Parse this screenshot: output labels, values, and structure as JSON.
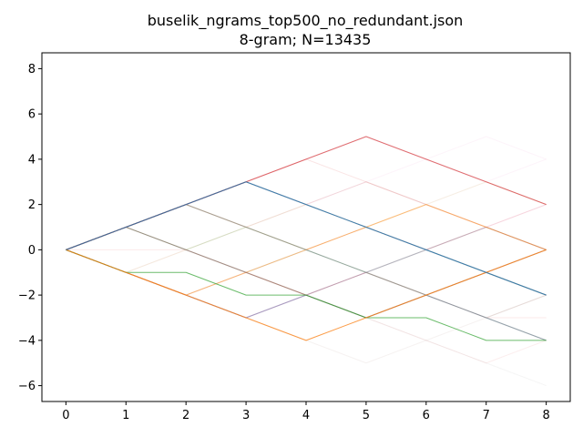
{
  "chart_data": {
    "type": "line",
    "title": "buselik_ngrams_top500_no_redundant.json",
    "subtitle": "8-gram; N=13435",
    "xlabel": "",
    "ylabel": "",
    "xlim": [
      -0.4,
      8.4
    ],
    "ylim": [
      -6.7,
      8.7
    ],
    "x_ticks": [
      0,
      1,
      2,
      3,
      4,
      5,
      6,
      7,
      8
    ],
    "y_ticks": [
      -6,
      -4,
      -2,
      0,
      2,
      4,
      6,
      8
    ],
    "grid": false,
    "legend": "none",
    "x": [
      0,
      1,
      2,
      3,
      4,
      5,
      6,
      7,
      8
    ],
    "series": [
      {
        "values": [
          0,
          1,
          2,
          3,
          4,
          5,
          4,
          3,
          2
        ],
        "color": "#d62728",
        "opacity": 0.65
      },
      {
        "values": [
          0,
          1,
          2,
          3,
          2,
          1,
          0,
          -1,
          -2
        ],
        "color": "#1f77b4",
        "opacity": 0.8
      },
      {
        "values": [
          0,
          1,
          2,
          3,
          2,
          1,
          0,
          -1,
          -2
        ],
        "color": "#7f7f7f",
        "opacity": 0.5
      },
      {
        "values": [
          0,
          -1,
          -2,
          -3,
          -4,
          -3,
          -2,
          -1,
          0
        ],
        "color": "#ff7f0e",
        "opacity": 0.75
      },
      {
        "values": [
          0,
          -1,
          -1,
          -2,
          -2,
          -3,
          -3,
          -4,
          -4
        ],
        "color": "#2ca02c",
        "opacity": 0.7
      },
      {
        "values": [
          0,
          1,
          0,
          -1,
          -2,
          -3,
          -2,
          -1,
          0
        ],
        "color": "#8c564b",
        "opacity": 0.6
      },
      {
        "values": [
          0,
          1,
          2,
          1,
          0,
          -1,
          -2,
          -3,
          -4
        ],
        "color": "#7f7f7f",
        "opacity": 0.6
      },
      {
        "values": [
          0,
          -1,
          -2,
          -1,
          0,
          1,
          2,
          1,
          0
        ],
        "color": "#ff7f0e",
        "opacity": 0.5
      },
      {
        "values": [
          0,
          -1,
          -2,
          -3,
          -2,
          -1,
          0,
          1,
          0
        ],
        "color": "#9467bd",
        "opacity": 0.4
      },
      {
        "values": [
          0,
          -1,
          -2,
          -3,
          -2,
          -3,
          -2,
          -3,
          -4
        ],
        "color": "#1f77b4",
        "opacity": 0.3
      },
      {
        "values": [
          0,
          1,
          2,
          3,
          2,
          1,
          0,
          -1,
          -2
        ],
        "color": "#d62728",
        "opacity": 0.25
      },
      {
        "values": [
          0,
          1,
          0,
          1,
          0,
          -1,
          0,
          -1,
          -2
        ],
        "color": "#2ca02c",
        "opacity": 0.15
      },
      {
        "values": [
          0,
          1,
          2,
          1,
          2,
          1,
          0,
          1,
          0
        ],
        "color": "#bcbd22",
        "opacity": 0.15
      },
      {
        "values": [
          0,
          -1,
          0,
          1,
          2,
          3,
          2,
          1,
          2
        ],
        "color": "#e377c2",
        "opacity": 0.12
      },
      {
        "values": [
          0,
          1,
          0,
          -1,
          0,
          -1,
          -2,
          -1,
          -2
        ],
        "color": "#17becf",
        "opacity": 0.15
      },
      {
        "values": [
          0,
          -1,
          -2,
          -3,
          -2,
          -1,
          -2,
          -1,
          -2
        ],
        "color": "#ff7f0e",
        "opacity": 0.15
      },
      {
        "values": [
          0,
          1,
          2,
          3,
          4,
          3,
          2,
          1,
          0
        ],
        "color": "#d62728",
        "opacity": 0.12
      },
      {
        "values": [
          0,
          -1,
          -2,
          -1,
          -2,
          -1,
          -2,
          -3,
          -2
        ],
        "color": "#8c564b",
        "opacity": 0.15
      },
      {
        "values": [
          0,
          1,
          2,
          3,
          4,
          5,
          4,
          3,
          2
        ],
        "color": "#9467bd",
        "opacity": 0.1
      },
      {
        "values": [
          0,
          -1,
          0,
          1,
          0,
          1,
          2,
          1,
          0
        ],
        "color": "#bcbd22",
        "opacity": 0.12
      },
      {
        "values": [
          0,
          1,
          2,
          1,
          0,
          1,
          0,
          1,
          2
        ],
        "color": "#d62728",
        "opacity": 0.12
      },
      {
        "values": [
          0,
          -1,
          -2,
          -3,
          -4,
          -3,
          -4,
          -5,
          -6
        ],
        "color": "#7f7f7f",
        "opacity": 0.08
      },
      {
        "values": [
          0,
          1,
          2,
          3,
          2,
          3,
          4,
          5,
          4
        ],
        "color": "#e377c2",
        "opacity": 0.08
      },
      {
        "values": [
          0,
          -1,
          -2,
          -3,
          -2,
          -3,
          -4,
          -5,
          -4
        ],
        "color": "#d62728",
        "opacity": 0.08
      },
      {
        "values": [
          0,
          1,
          2,
          1,
          0,
          -1,
          0,
          1,
          0
        ],
        "color": "#bcbd22",
        "opacity": 0.1
      },
      {
        "values": [
          0,
          0,
          0,
          -1,
          -2,
          -1,
          -2,
          -3,
          -3
        ],
        "color": "#d62728",
        "opacity": 0.1
      },
      {
        "values": [
          0,
          1,
          2,
          3,
          2,
          3,
          2,
          3,
          2
        ],
        "color": "#bcbd22",
        "opacity": 0.1
      },
      {
        "values": [
          0,
          -1,
          -2,
          -3,
          -4,
          -5,
          -4,
          -3,
          -2
        ],
        "color": "#8c564b",
        "opacity": 0.08
      },
      {
        "values": [
          0,
          1,
          0,
          -1,
          -2,
          -1,
          0,
          -1,
          -2
        ],
        "color": "#2ca02c",
        "opacity": 0.08
      },
      {
        "values": [
          0,
          1,
          2,
          1,
          2,
          3,
          2,
          3,
          4
        ],
        "color": "#e377c2",
        "opacity": 0.08
      }
    ]
  }
}
